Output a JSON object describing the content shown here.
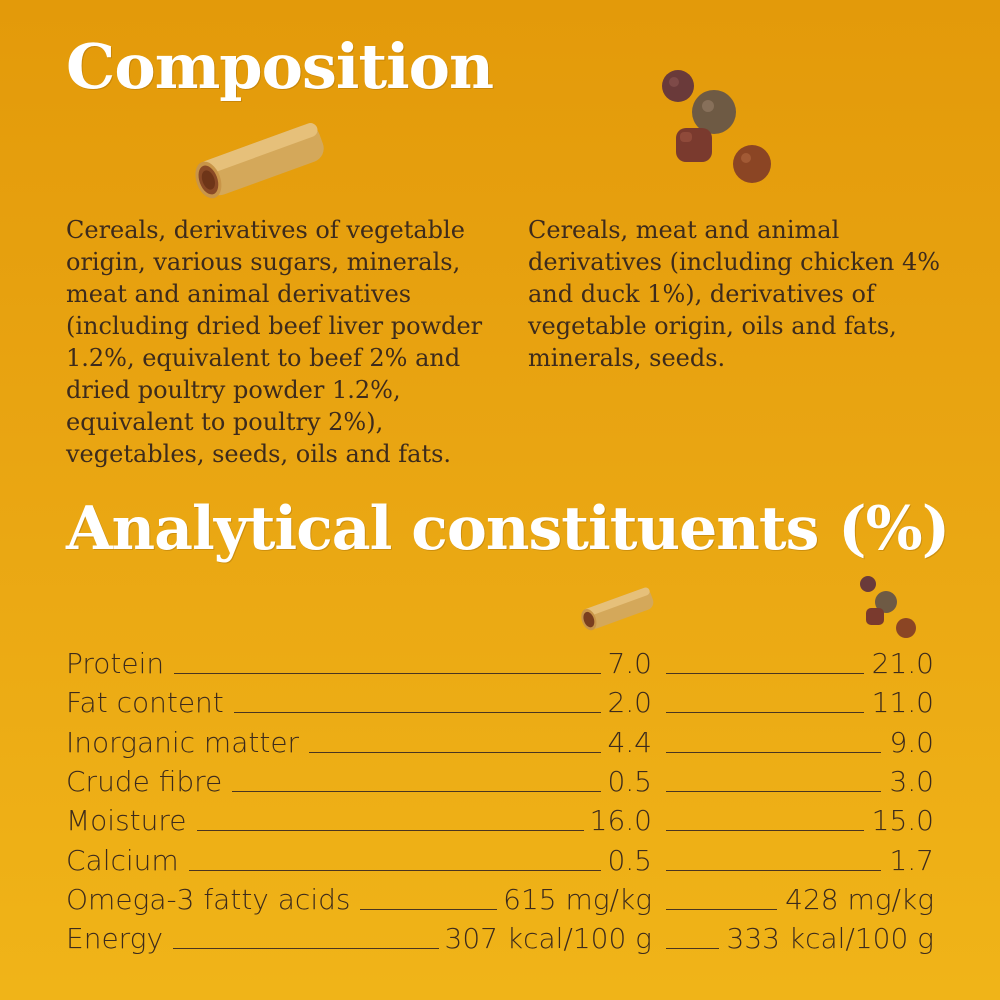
{
  "composition": {
    "title": "Composition",
    "stick_ingredients": "Cereals, derivatives of vegetable origin, various sugars, minerals, meat and animal derivatives (including dried beef liver powder 1.2%, equivalent to beef 2% and dried poultry powder 1.2%, equivalent to poultry 2%), vegetables, seeds, oils and fats.",
    "kibble_ingredients": "Cereals, meat and animal derivatives (including chicken 4% and duck 1%), derivatives of vegetable origin, oils and fats, minerals, seeds."
  },
  "analytical": {
    "title": "Analytical constituents (%)",
    "rows": [
      {
        "label": "Protein",
        "stick": "7.0",
        "kibble": "21.0"
      },
      {
        "label": "Fat content",
        "stick": "2.0",
        "kibble": "11.0"
      },
      {
        "label": "Inorganic matter",
        "stick": "4.4",
        "kibble": "9.0"
      },
      {
        "label": "Crude fibre",
        "stick": "0.5",
        "kibble": "3.0"
      },
      {
        "label": "Moisture",
        "stick": "16.0",
        "kibble": "15.0"
      },
      {
        "label": "Calcium",
        "stick": "0.5",
        "kibble": "1.7"
      },
      {
        "label": "Omega-3 fatty acids",
        "stick": "615 mg/kg",
        "kibble": "428 mg/kg"
      },
      {
        "label": "Energy",
        "stick": "307 kcal/100 g",
        "kibble": "333 kcal/100 g"
      }
    ]
  },
  "icons": {
    "stick": "dental-stick-icon",
    "kibble": "kibble-pieces-icon"
  },
  "colors": {
    "background_top": "#e39a0a",
    "background_bottom": "#f0b418",
    "heading": "#ffffff",
    "body_text": "#3d2b1c"
  }
}
